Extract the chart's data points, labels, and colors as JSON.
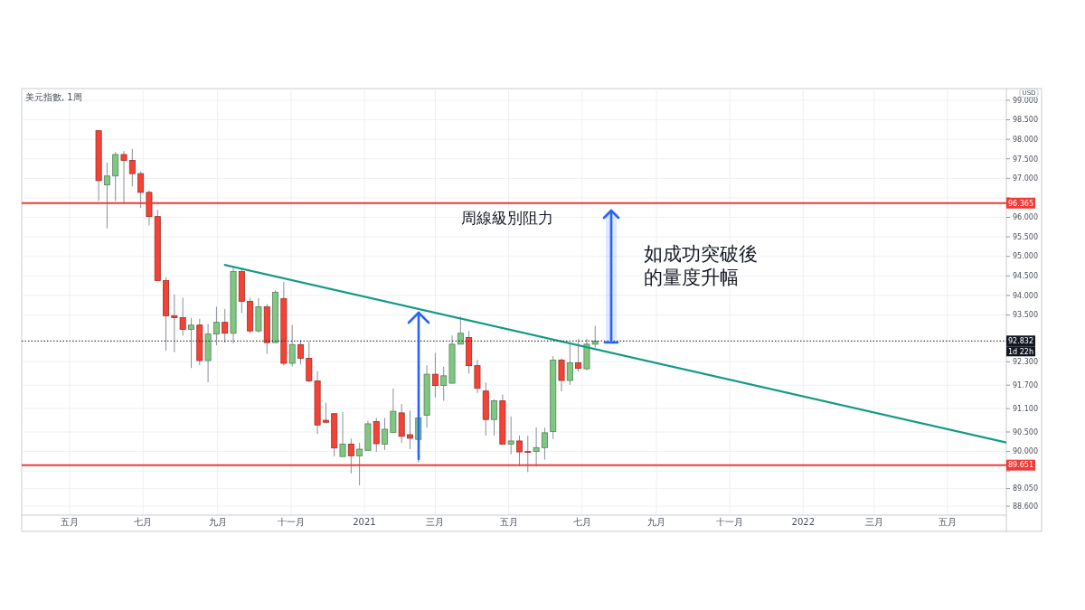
{
  "chart_data": {
    "type": "candlestick",
    "title": "美元指數, 1周",
    "ylabel": "USD",
    "x": [
      "2020-05-25",
      "2020-06-01",
      "2020-06-08",
      "2020-06-15",
      "2020-06-22",
      "2020-06-29",
      "2020-07-06",
      "2020-07-13",
      "2020-07-20",
      "2020-07-27",
      "2020-08-03",
      "2020-08-10",
      "2020-08-17",
      "2020-08-24",
      "2020-08-31",
      "2020-09-07",
      "2020-09-14",
      "2020-09-21",
      "2020-09-28",
      "2020-10-05",
      "2020-10-12",
      "2020-10-19",
      "2020-10-26",
      "2020-11-02",
      "2020-11-09",
      "2020-11-16",
      "2020-11-23",
      "2020-11-30",
      "2020-12-07",
      "2020-12-14",
      "2020-12-21",
      "2020-12-28",
      "2021-01-04",
      "2021-01-11",
      "2021-01-18",
      "2021-01-25",
      "2021-02-01",
      "2021-02-08",
      "2021-02-15",
      "2021-02-22",
      "2021-03-01",
      "2021-03-08",
      "2021-03-15",
      "2021-03-22",
      "2021-03-29",
      "2021-04-05",
      "2021-04-12",
      "2021-04-19",
      "2021-04-26",
      "2021-05-03",
      "2021-05-10",
      "2021-05-17",
      "2021-05-24",
      "2021-05-31",
      "2021-06-07",
      "2021-06-14",
      "2021-06-21",
      "2021-06-28",
      "2021-07-05",
      "2021-07-12"
    ],
    "ohlc": [
      [
        98.22,
        98.22,
        96.42,
        96.94
      ],
      [
        96.83,
        97.4,
        95.72,
        97.06
      ],
      [
        97.06,
        97.67,
        96.42,
        97.61
      ],
      [
        97.61,
        97.7,
        96.38,
        97.46
      ],
      [
        97.46,
        97.75,
        96.79,
        97.12
      ],
      [
        97.12,
        97.18,
        96.24,
        96.64
      ],
      [
        96.64,
        96.69,
        95.79,
        96.02
      ],
      [
        96.02,
        96.19,
        94.38,
        94.38
      ],
      [
        94.38,
        94.46,
        92.58,
        93.48
      ],
      [
        93.48,
        94.02,
        92.54,
        93.43
      ],
      [
        93.43,
        93.94,
        92.97,
        93.13
      ],
      [
        93.13,
        93.42,
        92.14,
        93.24
      ],
      [
        93.24,
        93.4,
        92.21,
        92.33
      ],
      [
        92.33,
        93.27,
        91.77,
        93.01
      ],
      [
        93.01,
        93.71,
        92.72,
        93.31
      ],
      [
        93.31,
        93.65,
        92.79,
        93.03
      ],
      [
        93.03,
        94.75,
        92.77,
        94.61
      ],
      [
        94.61,
        94.71,
        93.55,
        93.85
      ],
      [
        93.85,
        93.94,
        93.03,
        93.09
      ],
      [
        93.09,
        93.93,
        93.05,
        93.71
      ],
      [
        93.71,
        93.78,
        92.5,
        92.79
      ],
      [
        92.79,
        94.13,
        92.79,
        94.08
      ],
      [
        93.92,
        94.35,
        92.2,
        92.26
      ],
      [
        92.26,
        93.24,
        92.18,
        92.74
      ],
      [
        92.74,
        92.86,
        92.23,
        92.39
      ],
      [
        92.39,
        92.81,
        91.77,
        91.81
      ],
      [
        91.81,
        92.06,
        90.45,
        90.68
      ],
      [
        90.8,
        91.25,
        90.72,
        90.75
      ],
      [
        90.97,
        90.97,
        89.87,
        90.09
      ],
      [
        89.87,
        91.01,
        89.87,
        90.19
      ],
      [
        90.19,
        90.33,
        89.44,
        89.89
      ],
      [
        89.89,
        90.22,
        89.13,
        90.06
      ],
      [
        90.03,
        90.79,
        90.03,
        90.71
      ],
      [
        90.77,
        90.86,
        89.99,
        90.2
      ],
      [
        90.19,
        90.86,
        90.04,
        90.57
      ],
      [
        90.49,
        91.61,
        90.49,
        91.03
      ],
      [
        90.99,
        91.22,
        90.22,
        90.39
      ],
      [
        90.43,
        91.05,
        90.06,
        90.34
      ],
      [
        90.31,
        90.9,
        89.72,
        90.86
      ],
      [
        90.93,
        92.21,
        90.61,
        91.98
      ],
      [
        91.98,
        92.53,
        91.38,
        91.69
      ],
      [
        91.69,
        92.17,
        91.3,
        91.94
      ],
      [
        91.75,
        92.97,
        91.74,
        92.75
      ],
      [
        92.75,
        93.46,
        92.75,
        93.03
      ],
      [
        92.92,
        93.09,
        92.0,
        92.2
      ],
      [
        92.2,
        92.35,
        91.5,
        91.62
      ],
      [
        91.55,
        91.77,
        90.41,
        90.82
      ],
      [
        90.82,
        91.34,
        90.41,
        91.3
      ],
      [
        91.3,
        91.46,
        90.19,
        90.19
      ],
      [
        90.19,
        90.9,
        89.93,
        90.27
      ],
      [
        90.27,
        90.41,
        89.62,
        89.99
      ],
      [
        90.0,
        90.41,
        89.47,
        89.99
      ],
      [
        90.0,
        90.62,
        89.61,
        90.1
      ],
      [
        90.1,
        90.61,
        89.79,
        90.48
      ],
      [
        90.51,
        92.44,
        90.32,
        92.34
      ],
      [
        92.34,
        92.39,
        91.54,
        91.82
      ],
      [
        91.82,
        92.75,
        91.71,
        92.27
      ],
      [
        92.27,
        92.88,
        92.04,
        92.13
      ],
      [
        92.12,
        92.89,
        92.08,
        92.75
      ],
      [
        92.75,
        93.22,
        92.66,
        92.83
      ]
    ],
    "colors": [
      "#f44336",
      "#81c784",
      "#81c784",
      "#f44336",
      "#f44336",
      "#f44336",
      "#f44336",
      "#f44336",
      "#f44336",
      "#f44336",
      "#f44336",
      "#81c784",
      "#f44336",
      "#81c784",
      "#81c784",
      "#f44336",
      "#81c784",
      "#f44336",
      "#f44336",
      "#81c784",
      "#f44336",
      "#81c784",
      "#f44336",
      "#81c784",
      "#f44336",
      "#f44336",
      "#f44336",
      "#f44336",
      "#f44336",
      "#81c784",
      "#f44336",
      "#81c784",
      "#81c784",
      "#f44336",
      "#81c784",
      "#81c784",
      "#f44336",
      "#f44336",
      "#81c784",
      "#81c784",
      "#f44336",
      "#81c784",
      "#81c784",
      "#81c784",
      "#f44336",
      "#f44336",
      "#f44336",
      "#81c784",
      "#f44336",
      "#81c784",
      "#f44336",
      "#f44336",
      "#81c784",
      "#81c784",
      "#81c784",
      "#f44336",
      "#81c784",
      "#f44336",
      "#81c784",
      "#81c784"
    ],
    "series": [
      {
        "type": "line",
        "color": "#139a86",
        "x": [
          "2020-09-07",
          "2022-06-19"
        ],
        "values": [
          94.78,
          90.23
        ]
      }
    ],
    "xlim": [
      "2020-03-22",
      "2022-06-19"
    ],
    "xticks": [
      {
        "value": "2020-05-01",
        "label": "五月"
      },
      {
        "value": "2020-07-01",
        "label": "七月"
      },
      {
        "value": "2020-09-01",
        "label": "九月"
      },
      {
        "value": "2020-11-01",
        "label": "十一月"
      },
      {
        "value": "2021-01-01",
        "label": "2021"
      },
      {
        "value": "2021-03-01",
        "label": "三月"
      },
      {
        "value": "2021-05-01",
        "label": "五月"
      },
      {
        "value": "2021-07-01",
        "label": "七月"
      },
      {
        "value": "2021-09-01",
        "label": "九月"
      },
      {
        "value": "2021-11-01",
        "label": "十一月"
      },
      {
        "value": "2022-01-01",
        "label": "2022"
      },
      {
        "value": "2022-03-01",
        "label": "三月"
      },
      {
        "value": "2022-05-01",
        "label": "五月"
      }
    ],
    "ylim": [
      88.37,
      99.3
    ],
    "yticks": [
      {
        "value": 99,
        "label": "99.000"
      },
      {
        "value": 98.5,
        "label": "98.500"
      },
      {
        "value": 98,
        "label": "98.000"
      },
      {
        "value": 97.5,
        "label": "97.500"
      },
      {
        "value": 97,
        "label": "97.000"
      },
      {
        "value": 96.5,
        "label": null
      },
      {
        "value": 96,
        "label": "96.000"
      },
      {
        "value": 95.5,
        "label": "95.500"
      },
      {
        "value": 95,
        "label": "95.000"
      },
      {
        "value": 94.5,
        "label": "94.500"
      },
      {
        "value": 94,
        "label": "94.000"
      },
      {
        "value": 93.5,
        "label": "93.500"
      },
      {
        "value": 92.3,
        "label": "92.300"
      },
      {
        "value": 91.7,
        "label": "91.700"
      },
      {
        "value": 91.1,
        "label": "91.100"
      },
      {
        "value": 90.5,
        "label": "90.500"
      },
      {
        "value": 90,
        "label": "90.000"
      },
      {
        "value": 89.5,
        "label": null
      },
      {
        "value": 89.05,
        "label": "89.050"
      },
      {
        "value": 88.6,
        "label": "88.600"
      }
    ],
    "grid": true,
    "ref_lines": [
      {
        "axis": "y",
        "value": 96.365,
        "label": "96.365",
        "color": "#f23a36"
      },
      {
        "axis": "y",
        "value": 89.651,
        "label": "89.651",
        "color": "#f23a36"
      },
      {
        "axis": "y",
        "value": 92.832,
        "label": "92.832",
        "color": "#131722",
        "line_style": "dotted"
      }
    ],
    "annotations": [
      "周線級別阻力",
      "如成功突破後",
      "的量度升幅",
      "1d 22h"
    ]
  }
}
